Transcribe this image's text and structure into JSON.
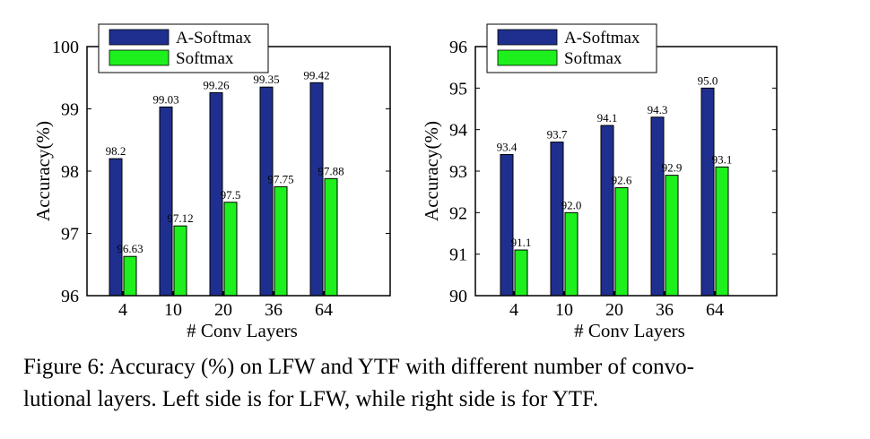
{
  "chart_data": [
    {
      "type": "bar",
      "title": "",
      "xlabel": "# Conv Layers",
      "ylabel": "Accuracy(%)",
      "categories": [
        "4",
        "10",
        "20",
        "36",
        "64"
      ],
      "ylim": [
        96,
        100
      ],
      "yticks": [
        "96",
        "97",
        "98",
        "99",
        "100"
      ],
      "legend_position": "top-left",
      "grid": false,
      "series": [
        {
          "name": "A-Softmax",
          "color": "#1f2f8f",
          "values": [
            98.2,
            99.03,
            99.26,
            99.35,
            99.42
          ],
          "labels": [
            "98.2",
            "99.03",
            "99.26",
            "99.35",
            "99.42"
          ]
        },
        {
          "name": "Softmax",
          "color": "#1ef01e",
          "values": [
            96.63,
            97.12,
            97.5,
            97.75,
            97.88
          ],
          "labels": [
            "96.63",
            "97.12",
            "97.5",
            "97.75",
            "97.88"
          ]
        }
      ]
    },
    {
      "type": "bar",
      "title": "",
      "xlabel": "# Conv Layers",
      "ylabel": "Accuracy(%)",
      "categories": [
        "4",
        "10",
        "20",
        "36",
        "64"
      ],
      "ylim": [
        90,
        96
      ],
      "yticks": [
        "90",
        "91",
        "92",
        "93",
        "94",
        "95",
        "96"
      ],
      "legend_position": "top-left",
      "grid": false,
      "series": [
        {
          "name": "A-Softmax",
          "color": "#1f2f8f",
          "values": [
            93.4,
            93.7,
            94.1,
            94.3,
            95.0
          ],
          "labels": [
            "93.4",
            "93.7",
            "94.1",
            "94.3",
            "95.0"
          ]
        },
        {
          "name": "Softmax",
          "color": "#1ef01e",
          "values": [
            91.1,
            92.0,
            92.6,
            92.9,
            93.1
          ],
          "labels": [
            "91.1",
            "92.0",
            "92.6",
            "92.9",
            "93.1"
          ]
        }
      ]
    }
  ],
  "caption": {
    "line1": "Figure 6: Accuracy (%) on LFW and YTF with different number of convo-",
    "line2": "lutional layers. Left side is for LFW, while right side is for YTF."
  }
}
